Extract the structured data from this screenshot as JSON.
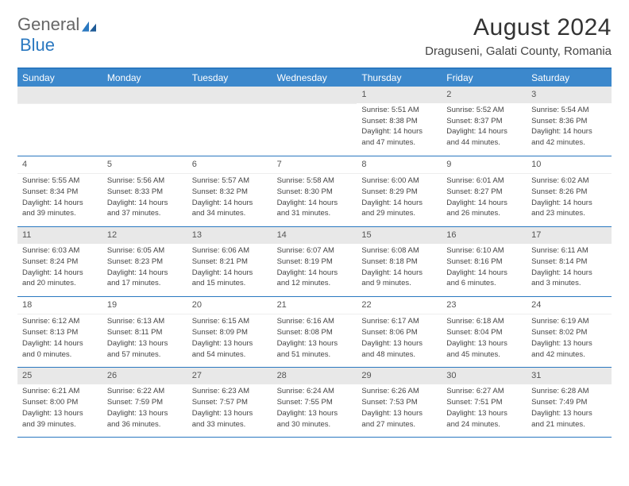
{
  "logo": {
    "text1": "General",
    "text2": "Blue"
  },
  "title": "August 2024",
  "location": "Draguseni, Galati County, Romania",
  "colors": {
    "accent": "#2a78c0",
    "headerbg": "#3c88cc",
    "shaded": "#e8e8e8"
  },
  "day_names": [
    "Sunday",
    "Monday",
    "Tuesday",
    "Wednesday",
    "Thursday",
    "Friday",
    "Saturday"
  ],
  "weeks": [
    [
      null,
      null,
      null,
      null,
      {
        "n": "1",
        "sr": "5:51 AM",
        "ss": "8:38 PM",
        "dl": "14 hours and 47 minutes."
      },
      {
        "n": "2",
        "sr": "5:52 AM",
        "ss": "8:37 PM",
        "dl": "14 hours and 44 minutes."
      },
      {
        "n": "3",
        "sr": "5:54 AM",
        "ss": "8:36 PM",
        "dl": "14 hours and 42 minutes."
      }
    ],
    [
      {
        "n": "4",
        "sr": "5:55 AM",
        "ss": "8:34 PM",
        "dl": "14 hours and 39 minutes."
      },
      {
        "n": "5",
        "sr": "5:56 AM",
        "ss": "8:33 PM",
        "dl": "14 hours and 37 minutes."
      },
      {
        "n": "6",
        "sr": "5:57 AM",
        "ss": "8:32 PM",
        "dl": "14 hours and 34 minutes."
      },
      {
        "n": "7",
        "sr": "5:58 AM",
        "ss": "8:30 PM",
        "dl": "14 hours and 31 minutes."
      },
      {
        "n": "8",
        "sr": "6:00 AM",
        "ss": "8:29 PM",
        "dl": "14 hours and 29 minutes."
      },
      {
        "n": "9",
        "sr": "6:01 AM",
        "ss": "8:27 PM",
        "dl": "14 hours and 26 minutes."
      },
      {
        "n": "10",
        "sr": "6:02 AM",
        "ss": "8:26 PM",
        "dl": "14 hours and 23 minutes."
      }
    ],
    [
      {
        "n": "11",
        "sr": "6:03 AM",
        "ss": "8:24 PM",
        "dl": "14 hours and 20 minutes."
      },
      {
        "n": "12",
        "sr": "6:05 AM",
        "ss": "8:23 PM",
        "dl": "14 hours and 17 minutes."
      },
      {
        "n": "13",
        "sr": "6:06 AM",
        "ss": "8:21 PM",
        "dl": "14 hours and 15 minutes."
      },
      {
        "n": "14",
        "sr": "6:07 AM",
        "ss": "8:19 PM",
        "dl": "14 hours and 12 minutes."
      },
      {
        "n": "15",
        "sr": "6:08 AM",
        "ss": "8:18 PM",
        "dl": "14 hours and 9 minutes."
      },
      {
        "n": "16",
        "sr": "6:10 AM",
        "ss": "8:16 PM",
        "dl": "14 hours and 6 minutes."
      },
      {
        "n": "17",
        "sr": "6:11 AM",
        "ss": "8:14 PM",
        "dl": "14 hours and 3 minutes."
      }
    ],
    [
      {
        "n": "18",
        "sr": "6:12 AM",
        "ss": "8:13 PM",
        "dl": "14 hours and 0 minutes."
      },
      {
        "n": "19",
        "sr": "6:13 AM",
        "ss": "8:11 PM",
        "dl": "13 hours and 57 minutes."
      },
      {
        "n": "20",
        "sr": "6:15 AM",
        "ss": "8:09 PM",
        "dl": "13 hours and 54 minutes."
      },
      {
        "n": "21",
        "sr": "6:16 AM",
        "ss": "8:08 PM",
        "dl": "13 hours and 51 minutes."
      },
      {
        "n": "22",
        "sr": "6:17 AM",
        "ss": "8:06 PM",
        "dl": "13 hours and 48 minutes."
      },
      {
        "n": "23",
        "sr": "6:18 AM",
        "ss": "8:04 PM",
        "dl": "13 hours and 45 minutes."
      },
      {
        "n": "24",
        "sr": "6:19 AM",
        "ss": "8:02 PM",
        "dl": "13 hours and 42 minutes."
      }
    ],
    [
      {
        "n": "25",
        "sr": "6:21 AM",
        "ss": "8:00 PM",
        "dl": "13 hours and 39 minutes."
      },
      {
        "n": "26",
        "sr": "6:22 AM",
        "ss": "7:59 PM",
        "dl": "13 hours and 36 minutes."
      },
      {
        "n": "27",
        "sr": "6:23 AM",
        "ss": "7:57 PM",
        "dl": "13 hours and 33 minutes."
      },
      {
        "n": "28",
        "sr": "6:24 AM",
        "ss": "7:55 PM",
        "dl": "13 hours and 30 minutes."
      },
      {
        "n": "29",
        "sr": "6:26 AM",
        "ss": "7:53 PM",
        "dl": "13 hours and 27 minutes."
      },
      {
        "n": "30",
        "sr": "6:27 AM",
        "ss": "7:51 PM",
        "dl": "13 hours and 24 minutes."
      },
      {
        "n": "31",
        "sr": "6:28 AM",
        "ss": "7:49 PM",
        "dl": "13 hours and 21 minutes."
      }
    ]
  ]
}
